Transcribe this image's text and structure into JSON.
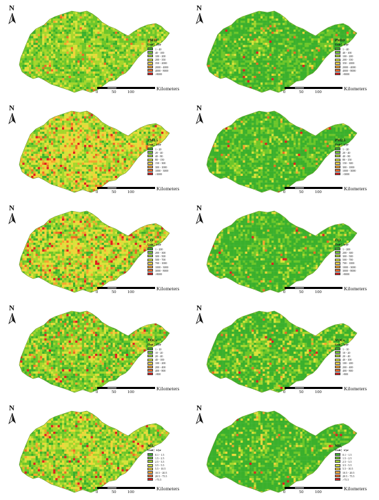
{
  "north_label": "N",
  "scale": {
    "ticks": [
      "0",
      "50",
      "100"
    ],
    "unit": "Kilometers"
  },
  "colors": {
    "background": "#ffffff",
    "ramp": [
      "#3bb02c",
      "#6cc62a",
      "#a5d62c",
      "#d8e23a",
      "#f2d33a",
      "#f4a52e",
      "#ee6a24",
      "#e01e1e"
    ]
  },
  "panels": [
    {
      "id": "pm10-left",
      "title": "PM10",
      "unit": "Unit：t/yr",
      "ramp_weights": [
        0.15,
        0.35,
        0.3,
        0.12,
        0.05,
        0.02,
        0.01,
        0.01
      ],
      "legend": [
        "1 - 40",
        "40 - 100",
        "100 - 200",
        "200 - 350",
        "350 - 2000",
        "2000 - 4000",
        "4000 - 8000",
        ">8000"
      ]
    },
    {
      "id": "pm10-right",
      "title": "PM10",
      "unit": "Unit：t/yr",
      "ramp_weights": [
        0.6,
        0.27,
        0.07,
        0.03,
        0.01,
        0.01,
        0.005,
        0.005
      ],
      "legend": [
        "1 - 40",
        "40 - 100",
        "100 - 200",
        "200 - 350",
        "350 - 2000",
        "2000 - 4000",
        "4000 - 8000",
        ">8000"
      ]
    },
    {
      "id": "pm25-left",
      "title": "PM2.5",
      "unit": "Unit：t/yr",
      "ramp_weights": [
        0.06,
        0.14,
        0.28,
        0.22,
        0.15,
        0.08,
        0.04,
        0.03
      ],
      "legend": [
        "1 - 20",
        "20 - 40",
        "40 - 80",
        "80 - 150",
        "150 - 300",
        "300 - 1000",
        "1000 - 3000",
        ">3000"
      ]
    },
    {
      "id": "pm25-right",
      "title": "PM2.5",
      "unit": "Unit：t/yr",
      "ramp_weights": [
        0.62,
        0.25,
        0.07,
        0.03,
        0.01,
        0.01,
        0.005,
        0.005
      ],
      "legend": [
        "1 - 20",
        "20 - 40",
        "40 - 80",
        "80 - 150",
        "150 - 300",
        "300 - 1000",
        "1000 - 3000",
        ">3000"
      ]
    },
    {
      "id": "co-left",
      "title": "CO",
      "unit": "Unit：t/yr",
      "ramp_weights": [
        0.08,
        0.18,
        0.26,
        0.2,
        0.13,
        0.08,
        0.04,
        0.03
      ],
      "legend": [
        "1 - 200",
        "200 - 300",
        "300 - 500",
        "500 - 700",
        "700 - 1000",
        "1000 - 3000",
        "3000 - 8000",
        ">8000"
      ]
    },
    {
      "id": "co-right",
      "title": "CO",
      "unit": "Unit：t/yr",
      "ramp_weights": [
        0.64,
        0.23,
        0.07,
        0.03,
        0.01,
        0.01,
        0.005,
        0.005
      ],
      "legend": [
        "1 - 200",
        "200 - 300",
        "300 - 500",
        "500 - 700",
        "700 - 1000",
        "1000 - 3000",
        "3000 - 8000",
        ">8000"
      ]
    },
    {
      "id": "vocs-left",
      "title": "VOCs",
      "unit": "Unit：t/yr",
      "ramp_weights": [
        0.2,
        0.34,
        0.24,
        0.1,
        0.05,
        0.03,
        0.02,
        0.02
      ],
      "legend": [
        "1 - 10",
        "10 - 20",
        "20 - 40",
        "40 - 100",
        "100 - 200",
        "200 - 400",
        "400 - 800",
        ">800"
      ]
    },
    {
      "id": "vocs-right",
      "title": "VOCs",
      "unit": "Unit：t/yr",
      "ramp_weights": [
        0.58,
        0.16,
        0.12,
        0.08,
        0.03,
        0.02,
        0.005,
        0.005
      ],
      "legend": [
        "1 - 10",
        "10 - 20",
        "20 - 40",
        "40 - 100",
        "100 - 200",
        "200 - 400",
        "400 - 800",
        ">800"
      ]
    },
    {
      "id": "nh3-left",
      "title": "NH₃",
      "unit": "Unit：t/yr",
      "ramp_weights": [
        0.1,
        0.28,
        0.3,
        0.16,
        0.08,
        0.04,
        0.02,
        0.02
      ],
      "legend": [
        "0.1 - 1.5",
        "1.5 - 2.5",
        "2.5 - 3.5",
        "3.5 - 5.5",
        "5.5 - 10.5",
        "10.5 - 20.5",
        "20.5 - 75.5",
        ">75.5"
      ]
    },
    {
      "id": "nh3-right",
      "title": "NH₃",
      "unit": "Unit：t/yr",
      "ramp_weights": [
        0.66,
        0.2,
        0.07,
        0.03,
        0.02,
        0.01,
        0.005,
        0.005
      ],
      "legend": [
        "0.1 - 1.5",
        "1.5 - 2.5",
        "2.5 - 3.5",
        "3.5 - 5.5",
        "5.5 - 10.5",
        "10.5 - 20.5",
        "20.5 - 75.5",
        ">75.5"
      ]
    }
  ]
}
